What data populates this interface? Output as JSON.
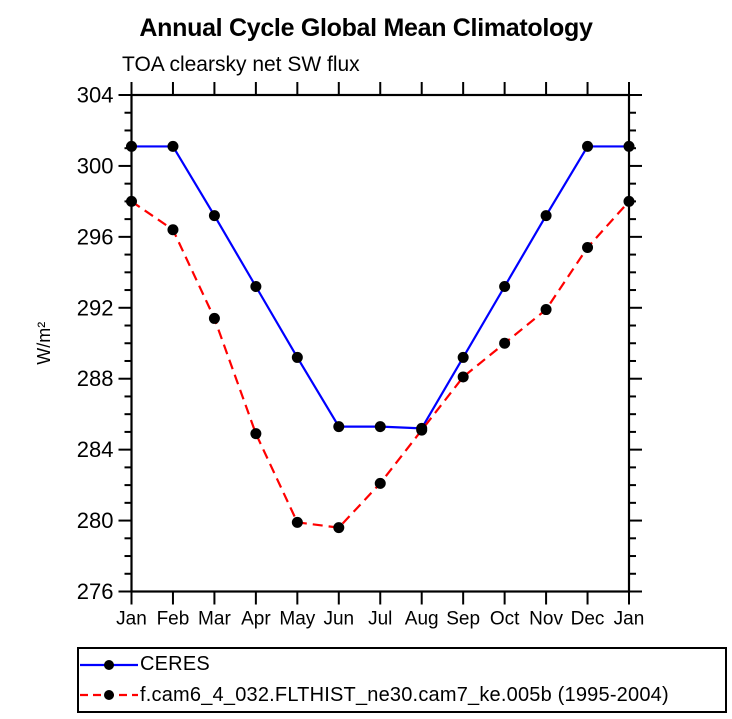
{
  "page": {
    "background_color": "#ffffff",
    "text_color": "#000000"
  },
  "chart_data": {
    "type": "line",
    "title": "Annual Cycle Global Mean Climatology",
    "subtitle": "TOA clearsky net SW flux",
    "ylabel": "W/m²",
    "x_categories": [
      "Jan",
      "Feb",
      "Mar",
      "Apr",
      "May",
      "Jun",
      "Jul",
      "Aug",
      "Sep",
      "Oct",
      "Nov",
      "Dec",
      "Jan"
    ],
    "ylim": [
      276,
      304
    ],
    "yticks_major": [
      276,
      280,
      284,
      288,
      292,
      296,
      300,
      304
    ],
    "ytick_minor_step": 1,
    "grid": false,
    "legend_position": "bottom-box",
    "series": [
      {
        "name": "CERES",
        "line_color": "#0000ff",
        "line_style": "solid",
        "marker": "filled-circle",
        "marker_color": "#000000",
        "values": [
          301.1,
          301.1,
          297.2,
          293.2,
          289.2,
          285.3,
          285.3,
          285.2,
          289.2,
          293.2,
          297.2,
          301.1,
          301.1
        ]
      },
      {
        "name": "f.cam6_4_032.FLTHIST_ne30.cam7_ke.005b (1995-2004)",
        "line_color": "#ff0000",
        "line_style": "dashed",
        "marker": "filled-circle",
        "marker_color": "#000000",
        "values": [
          298.0,
          296.4,
          291.4,
          284.9,
          279.9,
          279.6,
          282.1,
          285.1,
          288.1,
          290.0,
          291.9,
          295.4,
          298.0
        ]
      }
    ]
  }
}
